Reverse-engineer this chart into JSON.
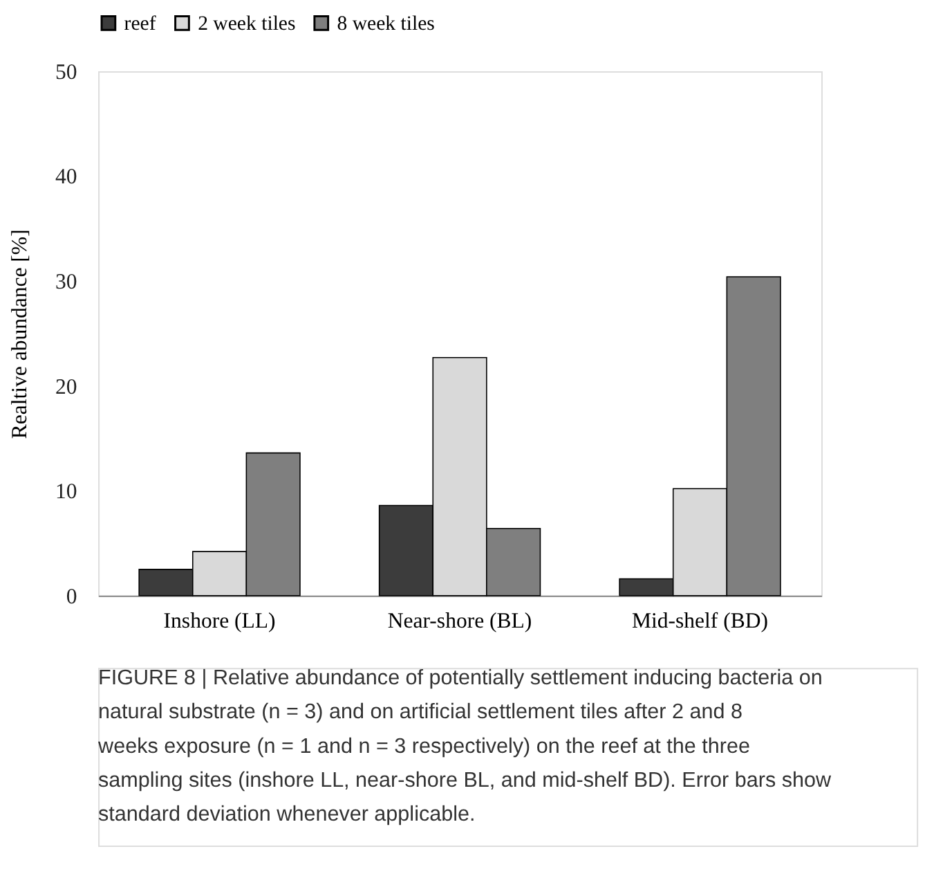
{
  "chart_data": {
    "type": "bar",
    "categories": [
      "Inshore (LL)",
      "Near-shore (BL)",
      "Mid-shelf (BD)"
    ],
    "series": [
      {
        "name": "reef",
        "color": "#3c3c3c",
        "values": [
          2.5,
          8.6,
          1.6
        ]
      },
      {
        "name": "2 week tiles",
        "color": "#d9d9d9",
        "values": [
          4.2,
          22.7,
          10.2
        ]
      },
      {
        "name": "8 week tiles",
        "color": "#7f7f7f",
        "values": [
          13.6,
          6.4,
          30.4
        ]
      }
    ],
    "ylabel": "Realtive abundance [%]",
    "ylim": [
      0,
      50
    ],
    "yticks": [
      0,
      10,
      20,
      30,
      40,
      50
    ],
    "grid": false,
    "legend": "top",
    "annotations": [
      "FIGURE 8 | Relative abundance of potentially settlement inducing bacteria on natural substrate (n = 3) and on artificial settlement tiles after 2 and 8 weeks exposure (n = 1 and n = 3 respectively) on the reef at the three sampling sites (inshore LL, near-shore BL, and mid-shelf BD). Error bars show standard deviation whenever applicable."
    ]
  }
}
